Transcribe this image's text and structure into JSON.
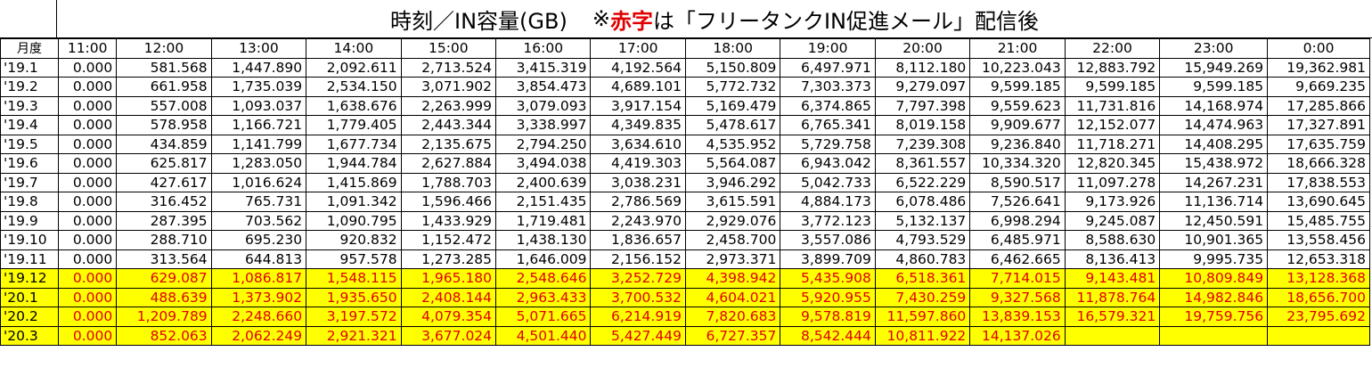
{
  "title": {
    "prefix": "時刻／IN容量(GB)",
    "note_mark": "※",
    "note_red": "赤字",
    "note_rest": "は「フリータンクIN促進メール」配信後"
  },
  "colors": {
    "highlight_fill": "#ffff00",
    "highlight_text": "#e00000"
  },
  "table": {
    "headers": [
      "月度",
      "11:00",
      "12:00",
      "13:00",
      "14:00",
      "15:00",
      "16:00",
      "17:00",
      "18:00",
      "19:00",
      "20:00",
      "21:00",
      "22:00",
      "23:00",
      "0:00"
    ],
    "rows": [
      {
        "month": "'19.1",
        "values": [
          "0.000",
          "581.568",
          "1,447.890",
          "2,092.611",
          "2,713.524",
          "3,415.319",
          "4,192.564",
          "5,150.809",
          "6,497.971",
          "8,112.180",
          "10,223.043",
          "12,883.792",
          "15,949.269",
          "19,362.981"
        ],
        "highlight": false
      },
      {
        "month": "'19.2",
        "values": [
          "0.000",
          "661.958",
          "1,735.039",
          "2,534.150",
          "3,071.902",
          "3,854.473",
          "4,689.101",
          "5,772.732",
          "7,303.373",
          "9,279.097",
          "9,599.185",
          "9,599.185",
          "9,599.185",
          "9,669.235"
        ],
        "highlight": false
      },
      {
        "month": "'19.3",
        "values": [
          "0.000",
          "557.008",
          "1,093.037",
          "1,638.676",
          "2,263.999",
          "3,079.093",
          "3,917.154",
          "5,169.479",
          "6,374.865",
          "7,797.398",
          "9,559.623",
          "11,731.816",
          "14,168.974",
          "17,285.866"
        ],
        "highlight": false
      },
      {
        "month": "'19.4",
        "values": [
          "0.000",
          "578.958",
          "1,166.721",
          "1,779.405",
          "2,443.344",
          "3,338.997",
          "4,349.835",
          "5,478.617",
          "6,765.341",
          "8,019.158",
          "9,909.677",
          "12,152.077",
          "14,474.963",
          "17,327.891"
        ],
        "highlight": false
      },
      {
        "month": "'19.5",
        "values": [
          "0.000",
          "434.859",
          "1,141.799",
          "1,677.734",
          "2,135.675",
          "2,794.250",
          "3,634.610",
          "4,535.952",
          "5,729.758",
          "7,239.308",
          "9,236.840",
          "11,718.271",
          "14,408.295",
          "17,635.759"
        ],
        "highlight": false
      },
      {
        "month": "'19.6",
        "values": [
          "0.000",
          "625.817",
          "1,283.050",
          "1,944.784",
          "2,627.884",
          "3,494.038",
          "4,419.303",
          "5,564.087",
          "6,943.042",
          "8,361.557",
          "10,334.320",
          "12,820.345",
          "15,438.972",
          "18,666.328"
        ],
        "highlight": false
      },
      {
        "month": "'19.7",
        "values": [
          "0.000",
          "427.617",
          "1,016.624",
          "1,415.869",
          "1,788.703",
          "2,400.639",
          "3,038.231",
          "3,946.292",
          "5,042.733",
          "6,522.229",
          "8,590.517",
          "11,097.278",
          "14,267.231",
          "17,838.553"
        ],
        "highlight": false
      },
      {
        "month": "'19.8",
        "values": [
          "0.000",
          "316.452",
          "765.731",
          "1,091.342",
          "1,596.466",
          "2,151.435",
          "2,786.569",
          "3,615.591",
          "4,884.173",
          "6,078.486",
          "7,526.641",
          "9,173.926",
          "11,136.714",
          "13,690.645"
        ],
        "highlight": false
      },
      {
        "month": "'19.9",
        "values": [
          "0.000",
          "287.395",
          "703.562",
          "1,090.795",
          "1,433.929",
          "1,719.481",
          "2,243.970",
          "2,929.076",
          "3,772.123",
          "5,132.137",
          "6,998.294",
          "9,245.087",
          "12,450.591",
          "15,485.755"
        ],
        "highlight": false
      },
      {
        "month": "'19.10",
        "values": [
          "0.000",
          "288.710",
          "695.230",
          "920.832",
          "1,152.472",
          "1,438.130",
          "1,836.657",
          "2,458.700",
          "3,557.086",
          "4,793.529",
          "6,485.971",
          "8,588.630",
          "10,901.365",
          "13,558.456"
        ],
        "highlight": false
      },
      {
        "month": "'19.11",
        "values": [
          "0.000",
          "313.564",
          "644.813",
          "957.578",
          "1,273.285",
          "1,646.009",
          "2,156.152",
          "2,973.371",
          "3,899.709",
          "4,860.783",
          "6,462.665",
          "8,136.413",
          "9,995.735",
          "12,653.318"
        ],
        "highlight": false
      },
      {
        "month": "'19.12",
        "values": [
          "0.000",
          "629.087",
          "1,086.817",
          "1,548.115",
          "1,965.180",
          "2,548.646",
          "3,252.729",
          "4,398.942",
          "5,435.908",
          "6,518.361",
          "7,714.015",
          "9,143.481",
          "10,809.849",
          "13,128.368"
        ],
        "highlight": true
      },
      {
        "month": "'20.1",
        "values": [
          "0.000",
          "488.639",
          "1,373.902",
          "1,935.650",
          "2,408.144",
          "2,963.433",
          "3,700.532",
          "4,604.021",
          "5,920.955",
          "7,430.259",
          "9,327.568",
          "11,878.764",
          "14,982.846",
          "18,656.700"
        ],
        "highlight": true
      },
      {
        "month": "'20.2",
        "values": [
          "0.000",
          "1,209.789",
          "2,248.660",
          "3,197.572",
          "4,079.354",
          "5,071.665",
          "6,214.919",
          "7,820.683",
          "9,578.819",
          "11,597.860",
          "13,839.153",
          "16,579.321",
          "19,759.756",
          "23,795.692"
        ],
        "highlight": true
      },
      {
        "month": "'20.3",
        "values": [
          "0.000",
          "852.063",
          "2,062.249",
          "2,921.321",
          "3,677.024",
          "4,501.440",
          "5,427.449",
          "6,727.357",
          "8,542.444",
          "10,811.922",
          "14,137.026",
          "",
          "",
          ""
        ],
        "highlight": true
      }
    ]
  }
}
